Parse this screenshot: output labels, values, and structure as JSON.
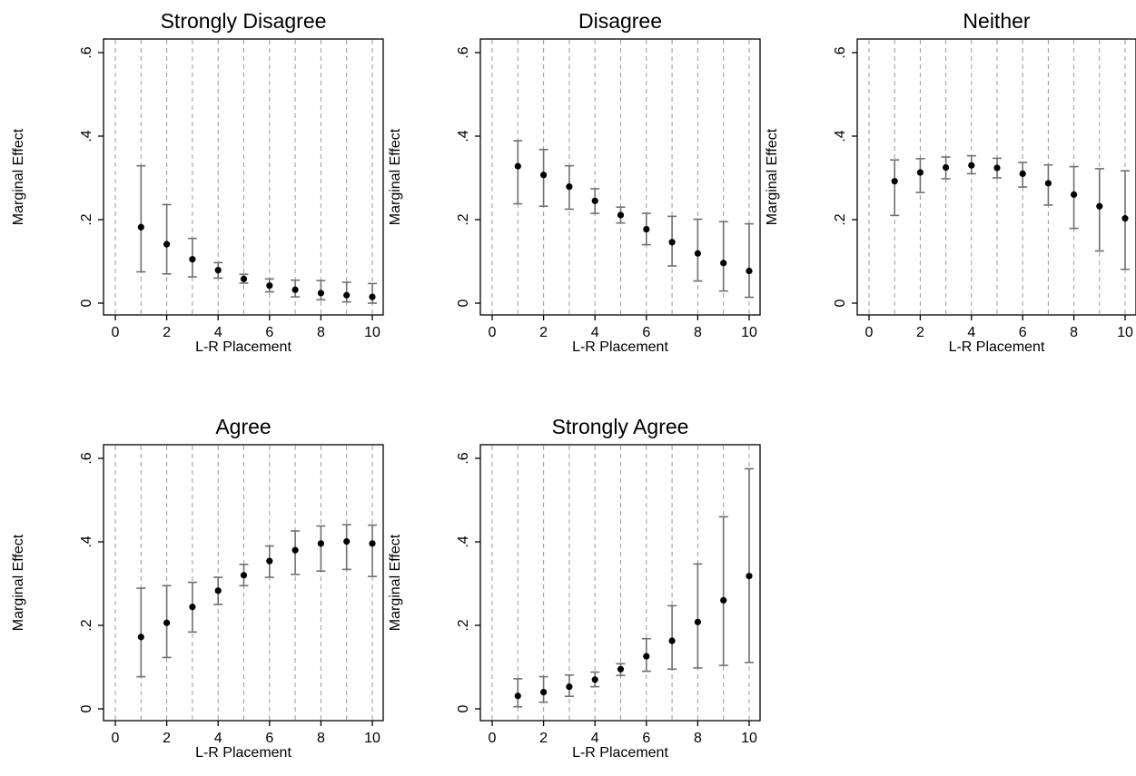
{
  "chart_data": [
    {
      "type": "scatter",
      "title": "Strongly Disagree",
      "xlabel": "L-R Placement",
      "ylabel": "Marginal Effect",
      "xlim": [
        0,
        10
      ],
      "ylim": [
        0,
        0.6
      ],
      "xticks": [
        {
          "v": 0,
          "label": "0"
        },
        {
          "v": 2,
          "label": "2"
        },
        {
          "v": 4,
          "label": "4"
        },
        {
          "v": 6,
          "label": "6"
        },
        {
          "v": 8,
          "label": "8"
        },
        {
          "v": 10,
          "label": "10"
        }
      ],
      "yticks": [
        {
          "v": 0,
          "label": "0"
        },
        {
          "v": 0.2,
          "label": ".2"
        },
        {
          "v": 0.4,
          "label": ".4"
        },
        {
          "v": 0.6,
          "label": ".6"
        }
      ],
      "grid_x": [
        0,
        1,
        2,
        3,
        4,
        5,
        6,
        7,
        8,
        9,
        10
      ],
      "x": [
        1,
        2,
        3,
        4,
        5,
        6,
        7,
        8,
        9,
        10
      ],
      "y": [
        0.182,
        0.141,
        0.105,
        0.079,
        0.058,
        0.042,
        0.032,
        0.024,
        0.019,
        0.015
      ],
      "lower": [
        0.075,
        0.07,
        0.063,
        0.06,
        0.048,
        0.027,
        0.015,
        0.008,
        0.003,
        0.0
      ],
      "upper": [
        0.329,
        0.236,
        0.155,
        0.097,
        0.069,
        0.058,
        0.055,
        0.054,
        0.05,
        0.047
      ]
    },
    {
      "type": "scatter",
      "title": "Disagree",
      "xlabel": "L-R Placement",
      "ylabel": "Marginal Effect",
      "xlim": [
        0,
        10
      ],
      "ylim": [
        0,
        0.6
      ],
      "xticks": [
        {
          "v": 0,
          "label": "0"
        },
        {
          "v": 2,
          "label": "2"
        },
        {
          "v": 4,
          "label": "4"
        },
        {
          "v": 6,
          "label": "6"
        },
        {
          "v": 8,
          "label": "8"
        },
        {
          "v": 10,
          "label": "10"
        }
      ],
      "yticks": [
        {
          "v": 0,
          "label": "0"
        },
        {
          "v": 0.2,
          "label": ".2"
        },
        {
          "v": 0.4,
          "label": ".4"
        },
        {
          "v": 0.6,
          "label": ".6"
        }
      ],
      "grid_x": [
        0,
        1,
        2,
        3,
        4,
        5,
        6,
        7,
        8,
        9,
        10
      ],
      "x": [
        1,
        2,
        3,
        4,
        5,
        6,
        7,
        8,
        9,
        10
      ],
      "y": [
        0.328,
        0.307,
        0.279,
        0.245,
        0.211,
        0.177,
        0.146,
        0.119,
        0.096,
        0.077
      ],
      "lower": [
        0.238,
        0.232,
        0.225,
        0.215,
        0.192,
        0.14,
        0.089,
        0.053,
        0.029,
        0.014
      ],
      "upper": [
        0.389,
        0.368,
        0.329,
        0.274,
        0.23,
        0.215,
        0.208,
        0.201,
        0.195,
        0.19
      ]
    },
    {
      "type": "scatter",
      "title": "Neither",
      "xlabel": "L-R Placement",
      "ylabel": "Marginal Effect",
      "xlim": [
        0,
        10
      ],
      "ylim": [
        0,
        0.6
      ],
      "xticks": [
        {
          "v": 0,
          "label": "0"
        },
        {
          "v": 2,
          "label": "2"
        },
        {
          "v": 4,
          "label": "4"
        },
        {
          "v": 6,
          "label": "6"
        },
        {
          "v": 8,
          "label": "8"
        },
        {
          "v": 10,
          "label": "10"
        }
      ],
      "yticks": [
        {
          "v": 0,
          "label": "0"
        },
        {
          "v": 0.2,
          "label": ".2"
        },
        {
          "v": 0.4,
          "label": ".4"
        },
        {
          "v": 0.6,
          "label": ".6"
        }
      ],
      "grid_x": [
        0,
        1,
        2,
        3,
        4,
        5,
        6,
        7,
        8,
        9,
        10
      ],
      "x": [
        1,
        2,
        3,
        4,
        5,
        6,
        7,
        8,
        9,
        10
      ],
      "y": [
        0.292,
        0.313,
        0.325,
        0.33,
        0.324,
        0.31,
        0.287,
        0.26,
        0.232,
        0.203
      ],
      "lower": [
        0.21,
        0.265,
        0.298,
        0.31,
        0.3,
        0.278,
        0.235,
        0.179,
        0.125,
        0.081
      ],
      "upper": [
        0.343,
        0.346,
        0.35,
        0.353,
        0.347,
        0.337,
        0.331,
        0.327,
        0.322,
        0.317
      ]
    },
    {
      "type": "scatter",
      "title": "Agree",
      "xlabel": "L-R Placement",
      "ylabel": "Marginal Effect",
      "xlim": [
        0,
        10
      ],
      "ylim": [
        0,
        0.6
      ],
      "xticks": [
        {
          "v": 0,
          "label": "0"
        },
        {
          "v": 2,
          "label": "2"
        },
        {
          "v": 4,
          "label": "4"
        },
        {
          "v": 6,
          "label": "6"
        },
        {
          "v": 8,
          "label": "8"
        },
        {
          "v": 10,
          "label": "10"
        }
      ],
      "yticks": [
        {
          "v": 0,
          "label": "0"
        },
        {
          "v": 0.2,
          "label": ".2"
        },
        {
          "v": 0.4,
          "label": ".4"
        },
        {
          "v": 0.6,
          "label": ".6"
        }
      ],
      "grid_x": [
        0,
        1,
        2,
        3,
        4,
        5,
        6,
        7,
        8,
        9,
        10
      ],
      "x": [
        1,
        2,
        3,
        4,
        5,
        6,
        7,
        8,
        9,
        10
      ],
      "y": [
        0.172,
        0.206,
        0.244,
        0.283,
        0.32,
        0.354,
        0.38,
        0.396,
        0.401,
        0.396
      ],
      "lower": [
        0.077,
        0.123,
        0.184,
        0.25,
        0.295,
        0.315,
        0.322,
        0.33,
        0.334,
        0.317
      ],
      "upper": [
        0.289,
        0.295,
        0.303,
        0.315,
        0.346,
        0.39,
        0.426,
        0.438,
        0.441,
        0.44
      ]
    },
    {
      "type": "scatter",
      "title": "Strongly Agree",
      "xlabel": "L-R Placement",
      "ylabel": "Marginal Effect",
      "xlim": [
        0,
        10
      ],
      "ylim": [
        0,
        0.6
      ],
      "xticks": [
        {
          "v": 0,
          "label": "0"
        },
        {
          "v": 2,
          "label": "2"
        },
        {
          "v": 4,
          "label": "4"
        },
        {
          "v": 6,
          "label": "6"
        },
        {
          "v": 8,
          "label": "8"
        },
        {
          "v": 10,
          "label": "10"
        }
      ],
      "yticks": [
        {
          "v": 0,
          "label": "0"
        },
        {
          "v": 0.2,
          "label": ".2"
        },
        {
          "v": 0.4,
          "label": ".4"
        },
        {
          "v": 0.6,
          "label": ".6"
        }
      ],
      "grid_x": [
        0,
        1,
        2,
        3,
        4,
        5,
        6,
        7,
        8,
        9,
        10
      ],
      "x": [
        1,
        2,
        3,
        4,
        5,
        6,
        7,
        8,
        9,
        10
      ],
      "y": [
        0.031,
        0.04,
        0.053,
        0.07,
        0.095,
        0.126,
        0.163,
        0.208,
        0.26,
        0.318
      ],
      "lower": [
        0.005,
        0.016,
        0.03,
        0.053,
        0.08,
        0.09,
        0.095,
        0.098,
        0.104,
        0.111
      ],
      "upper": [
        0.072,
        0.077,
        0.081,
        0.088,
        0.108,
        0.168,
        0.247,
        0.347,
        0.46,
        0.575
      ]
    }
  ]
}
